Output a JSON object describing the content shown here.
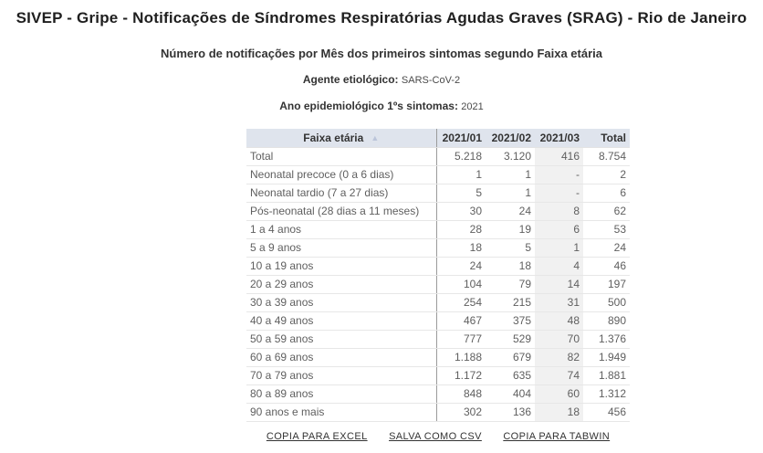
{
  "page": {
    "title": "SIVEP - Gripe - Notificações de Síndromes Respiratórias Agudas Graves (SRAG) - Rio de Janeiro",
    "subtitle": "Número de notificações por Mês dos primeiros sintomas segundo Faixa etária",
    "meta": [
      {
        "label": "Agente etiológico:",
        "value": "SARS-CoV-2"
      },
      {
        "label": "Ano epidemiológico 1ºs sintomas:",
        "value": "2021"
      }
    ]
  },
  "table": {
    "row_header": "Faixa etária",
    "sort_icon": "▲",
    "sort_state": "ascending",
    "columns": [
      "2021/01",
      "2021/02",
      "2021/03",
      "Total"
    ],
    "highlighted_column": "2021/03",
    "rows": [
      {
        "label": "Total",
        "values": [
          "5.218",
          "3.120",
          "416",
          "8.754"
        ]
      },
      {
        "label": "Neonatal precoce (0 a 6 dias)",
        "values": [
          "1",
          "1",
          "-",
          "2"
        ]
      },
      {
        "label": "Neonatal tardio (7 a 27 dias)",
        "values": [
          "5",
          "1",
          "-",
          "6"
        ]
      },
      {
        "label": "Pós-neonatal (28 dias a 11 meses)",
        "values": [
          "30",
          "24",
          "8",
          "62"
        ]
      },
      {
        "label": "1 a 4 anos",
        "values": [
          "28",
          "19",
          "6",
          "53"
        ]
      },
      {
        "label": "5 a 9 anos",
        "values": [
          "18",
          "5",
          "1",
          "24"
        ]
      },
      {
        "label": "10 a 19 anos",
        "values": [
          "24",
          "18",
          "4",
          "46"
        ]
      },
      {
        "label": "20 a 29 anos",
        "values": [
          "104",
          "79",
          "14",
          "197"
        ]
      },
      {
        "label": "30 a 39 anos",
        "values": [
          "254",
          "215",
          "31",
          "500"
        ]
      },
      {
        "label": "40 a 49 anos",
        "values": [
          "467",
          "375",
          "48",
          "890"
        ]
      },
      {
        "label": "50 a 59 anos",
        "values": [
          "777",
          "529",
          "70",
          "1.376"
        ]
      },
      {
        "label": "60 a 69 anos",
        "values": [
          "1.188",
          "679",
          "82",
          "1.949"
        ]
      },
      {
        "label": "70 a 79 anos",
        "values": [
          "1.172",
          "635",
          "74",
          "1.881"
        ]
      },
      {
        "label": "80 a 89 anos",
        "values": [
          "848",
          "404",
          "60",
          "1.312"
        ]
      },
      {
        "label": "90 anos e mais",
        "values": [
          "302",
          "136",
          "18",
          "456"
        ]
      }
    ]
  },
  "footer_links": [
    {
      "label": "COPIA PARA EXCEL"
    },
    {
      "label": "SALVA COMO CSV"
    },
    {
      "label": "COPIA PARA TABWIN"
    }
  ],
  "colors": {
    "title_color": "#1f1f1f",
    "subtitle_color": "#333333",
    "header_bg": "#dfe4ed",
    "divider_color": "#9b9b9b",
    "row_border": "#e7e7e7",
    "cell_color": "#5f5f5f",
    "column_highlight": "#f1f1f1",
    "sort_arrow": "#bcc5da",
    "link_color": "#333333"
  }
}
